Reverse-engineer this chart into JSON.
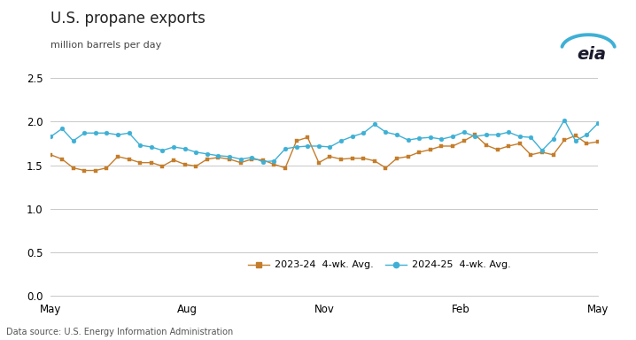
{
  "title": "U.S. propane exports",
  "ylabel": "million barrels per day",
  "source": "Data source: U.S. Energy Information Administration",
  "ylim": [
    0.0,
    2.5
  ],
  "yticks": [
    0.0,
    0.5,
    1.0,
    1.5,
    2.0,
    2.5
  ],
  "xtick_labels": [
    "May",
    "Aug",
    "Nov",
    "Feb",
    "May"
  ],
  "xtick_positions": [
    0,
    13,
    26,
    39,
    52
  ],
  "xlim": [
    0,
    52
  ],
  "background_color": "#ffffff",
  "grid_color": "#c8c8c8",
  "series": [
    {
      "label": "2023-24  4-wk. Avg.",
      "color": "#c47d2b",
      "marker": "s",
      "values": [
        1.62,
        1.57,
        1.47,
        1.44,
        1.44,
        1.47,
        1.6,
        1.57,
        1.53,
        1.53,
        1.49,
        1.56,
        1.51,
        1.49,
        1.57,
        1.59,
        1.57,
        1.53,
        1.57,
        1.56,
        1.51,
        1.47,
        1.78,
        1.82,
        1.53,
        1.6,
        1.57,
        1.58,
        1.58,
        1.55,
        1.47,
        1.58,
        1.6,
        1.65,
        1.68,
        1.72,
        1.72,
        1.78,
        1.85,
        1.73,
        1.68,
        1.72,
        1.75,
        1.62,
        1.65,
        1.62,
        1.79,
        1.84,
        1.75,
        1.77
      ]
    },
    {
      "label": "2024-25  4-wk. Avg.",
      "color": "#3eb0d5",
      "marker": "o",
      "values": [
        1.83,
        1.92,
        1.78,
        1.87,
        1.87,
        1.87,
        1.85,
        1.87,
        1.73,
        1.71,
        1.67,
        1.71,
        1.69,
        1.65,
        1.63,
        1.61,
        1.6,
        1.57,
        1.59,
        1.54,
        1.55,
        1.69,
        1.71,
        1.72,
        1.72,
        1.71,
        1.78,
        1.83,
        1.87,
        1.97,
        1.88,
        1.85,
        1.79,
        1.81,
        1.82,
        1.8,
        1.83,
        1.88,
        1.83,
        1.85,
        1.85,
        1.88,
        1.83,
        1.82,
        1.67,
        1.8,
        2.02,
        1.78,
        1.85,
        1.98
      ]
    }
  ]
}
